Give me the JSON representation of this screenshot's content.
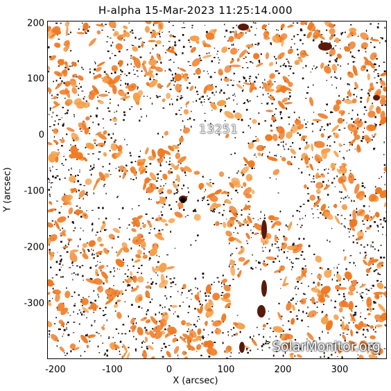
{
  "title": "H-alpha 15-Mar-2023 11:25:14.000",
  "axes": {
    "xlabel": "X (arcsec)",
    "ylabel": "Y (arcsec)",
    "xticks": [
      "-200",
      "-100",
      "0",
      "100",
      "200",
      "300"
    ],
    "yticks": [
      "200",
      "100",
      "0",
      "-100",
      "-200",
      "-300"
    ],
    "xlim": [
      -220,
      382
    ],
    "ylim": [
      -398,
      203
    ]
  },
  "region": {
    "label": "13251"
  },
  "watermark": "SolarMonitor.org",
  "colors": {
    "background": "#ffffff",
    "plage": "#f07a22",
    "bright": "#f6a04a",
    "dark": "#5a1a08",
    "speckle": "#1a0a04"
  }
}
